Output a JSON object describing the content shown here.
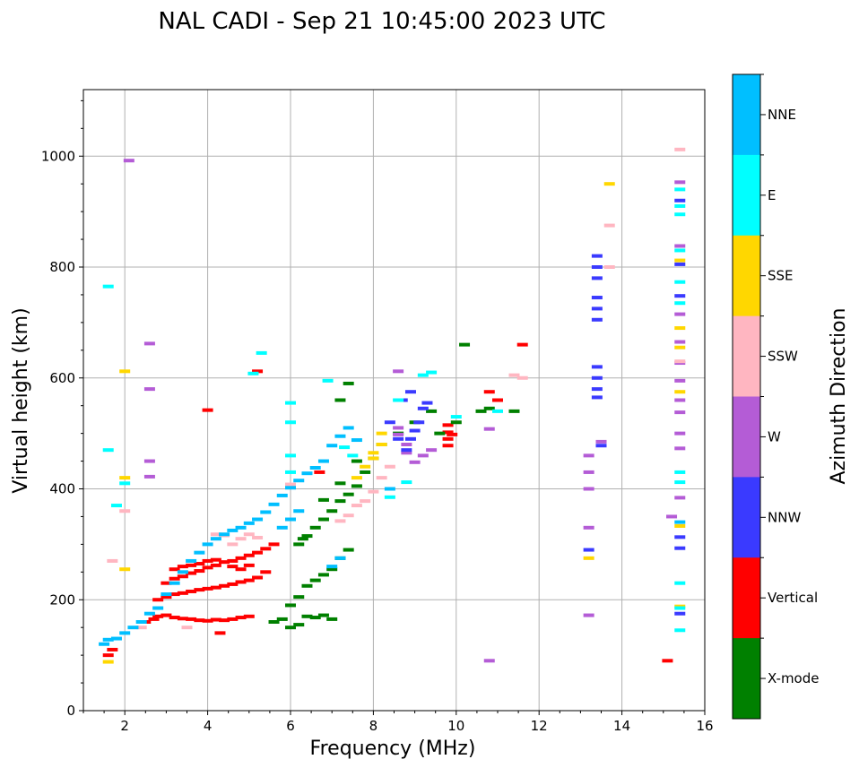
{
  "chart_data": {
    "type": "scatter",
    "title": "NAL CADI - Sep 21 10:45:00 2023 UTC",
    "xlabel": "Frequency (MHz)",
    "ylabel": "Virtual height (km)",
    "xlim": [
      1,
      16
    ],
    "ylim": [
      0,
      1120
    ],
    "xticks": [
      2,
      4,
      6,
      8,
      10,
      12,
      14,
      16
    ],
    "yticks": [
      0,
      200,
      400,
      600,
      800,
      1000
    ],
    "grid": true,
    "colorbar": {
      "title": "Azimuth Direction",
      "categories": [
        {
          "label": "NNE",
          "color": "#00bfff"
        },
        {
          "label": "E",
          "color": "#00ffff"
        },
        {
          "label": "SSE",
          "color": "#ffd700"
        },
        {
          "label": "SSW",
          "color": "#ffb6c1"
        },
        {
          "label": "W",
          "color": "#b45cd6"
        },
        {
          "label": "NNW",
          "color": "#3a3aff"
        },
        {
          "label": "Vertical",
          "color": "#ff0000"
        },
        {
          "label": "X-mode",
          "color": "#008000"
        }
      ]
    },
    "series": [
      {
        "name": "Vertical",
        "points": [
          [
            1.6,
            100
          ],
          [
            1.7,
            110
          ],
          [
            2.5,
            160
          ],
          [
            2.7,
            165
          ],
          [
            2.8,
            170
          ],
          [
            3.0,
            172
          ],
          [
            3.2,
            168
          ],
          [
            3.4,
            166
          ],
          [
            3.6,
            165
          ],
          [
            3.8,
            163
          ],
          [
            4.0,
            162
          ],
          [
            4.2,
            164
          ],
          [
            4.4,
            163
          ],
          [
            4.6,
            165
          ],
          [
            4.8,
            168
          ],
          [
            5.0,
            170
          ],
          [
            2.8,
            200
          ],
          [
            3.0,
            205
          ],
          [
            3.2,
            210
          ],
          [
            3.4,
            212
          ],
          [
            3.6,
            215
          ],
          [
            3.8,
            218
          ],
          [
            4.0,
            220
          ],
          [
            4.2,
            222
          ],
          [
            4.4,
            225
          ],
          [
            4.6,
            228
          ],
          [
            4.8,
            232
          ],
          [
            5.0,
            235
          ],
          [
            5.2,
            240
          ],
          [
            5.4,
            250
          ],
          [
            3.0,
            230
          ],
          [
            3.2,
            238
          ],
          [
            3.4,
            242
          ],
          [
            3.6,
            248
          ],
          [
            3.8,
            252
          ],
          [
            4.0,
            258
          ],
          [
            4.2,
            262
          ],
          [
            4.4,
            268
          ],
          [
            4.6,
            270
          ],
          [
            4.8,
            275
          ],
          [
            5.0,
            280
          ],
          [
            5.2,
            285
          ],
          [
            5.4,
            292
          ],
          [
            5.6,
            300
          ],
          [
            3.2,
            255
          ],
          [
            3.4,
            260
          ],
          [
            3.6,
            262
          ],
          [
            3.8,
            265
          ],
          [
            4.0,
            270
          ],
          [
            4.2,
            272
          ],
          [
            4.6,
            260
          ],
          [
            4.8,
            255
          ],
          [
            5.0,
            262
          ],
          [
            4.3,
            140
          ],
          [
            4.0,
            542
          ],
          [
            5.2,
            612
          ],
          [
            6.7,
            430
          ],
          [
            9.8,
            478
          ],
          [
            9.8,
            490
          ],
          [
            9.8,
            502
          ],
          [
            9.8,
            515
          ],
          [
            9.9,
            498
          ],
          [
            10.8,
            575
          ],
          [
            11.0,
            560
          ],
          [
            11.6,
            660
          ],
          [
            15.1,
            90
          ]
        ]
      },
      {
        "name": "X-mode",
        "points": [
          [
            5.6,
            160
          ],
          [
            5.8,
            165
          ],
          [
            6.0,
            150
          ],
          [
            6.2,
            155
          ],
          [
            6.4,
            170
          ],
          [
            6.6,
            168
          ],
          [
            6.8,
            172
          ],
          [
            7.0,
            165
          ],
          [
            6.0,
            190
          ],
          [
            6.2,
            205
          ],
          [
            6.4,
            225
          ],
          [
            6.6,
            235
          ],
          [
            6.8,
            245
          ],
          [
            7.0,
            255
          ],
          [
            7.2,
            275
          ],
          [
            7.4,
            290
          ],
          [
            6.2,
            300
          ],
          [
            6.3,
            310
          ],
          [
            6.4,
            315
          ],
          [
            6.6,
            330
          ],
          [
            6.8,
            345
          ],
          [
            7.0,
            360
          ],
          [
            7.2,
            378
          ],
          [
            7.4,
            390
          ],
          [
            7.6,
            405
          ],
          [
            7.8,
            430
          ],
          [
            8.0,
            455
          ],
          [
            6.8,
            380
          ],
          [
            7.2,
            410
          ],
          [
            7.6,
            450
          ],
          [
            8.2,
            480
          ],
          [
            8.6,
            500
          ],
          [
            9.0,
            520
          ],
          [
            9.4,
            540
          ],
          [
            9.6,
            500
          ],
          [
            10.0,
            520
          ],
          [
            10.2,
            660
          ],
          [
            10.6,
            540
          ],
          [
            10.8,
            545
          ],
          [
            11.4,
            540
          ],
          [
            7.2,
            560
          ],
          [
            7.4,
            590
          ]
        ]
      },
      {
        "name": "W",
        "points": [
          [
            2.6,
            662
          ],
          [
            2.6,
            580
          ],
          [
            2.6,
            450
          ],
          [
            2.6,
            422
          ],
          [
            8.6,
            612
          ],
          [
            8.6,
            510
          ],
          [
            8.6,
            498
          ],
          [
            8.8,
            480
          ],
          [
            8.8,
            465
          ],
          [
            9.0,
            448
          ],
          [
            9.2,
            460
          ],
          [
            9.4,
            470
          ],
          [
            13.2,
            460
          ],
          [
            13.2,
            430
          ],
          [
            13.2,
            400
          ],
          [
            13.2,
            330
          ],
          [
            13.2,
            172
          ],
          [
            13.5,
            485
          ],
          [
            10.8,
            90
          ],
          [
            10.8,
            508
          ],
          [
            15.2,
            350
          ],
          [
            15.4,
            384
          ],
          [
            15.4,
            473
          ],
          [
            15.4,
            500
          ],
          [
            15.4,
            538
          ],
          [
            15.4,
            560
          ],
          [
            15.4,
            595
          ],
          [
            15.4,
            627
          ],
          [
            15.4,
            665
          ],
          [
            15.4,
            715
          ],
          [
            15.4,
            838
          ],
          [
            15.4,
            953
          ],
          [
            2.1,
            992
          ]
        ]
      },
      {
        "name": "NNW",
        "points": [
          [
            8.8,
            470
          ],
          [
            8.9,
            490
          ],
          [
            9.0,
            505
          ],
          [
            9.1,
            520
          ],
          [
            9.2,
            545
          ],
          [
            9.3,
            555
          ],
          [
            8.4,
            520
          ],
          [
            8.6,
            490
          ],
          [
            8.7,
            560
          ],
          [
            8.9,
            575
          ],
          [
            13.4,
            820
          ],
          [
            13.4,
            800
          ],
          [
            13.4,
            780
          ],
          [
            13.4,
            745
          ],
          [
            13.4,
            725
          ],
          [
            13.4,
            705
          ],
          [
            13.4,
            620
          ],
          [
            13.4,
            600
          ],
          [
            13.4,
            580
          ],
          [
            13.4,
            565
          ],
          [
            13.2,
            290
          ],
          [
            13.5,
            478
          ],
          [
            15.4,
            175
          ],
          [
            15.4,
            293
          ],
          [
            15.4,
            313
          ],
          [
            15.4,
            748
          ],
          [
            15.4,
            805
          ],
          [
            15.4,
            920
          ]
        ]
      },
      {
        "name": "SSW",
        "points": [
          [
            1.7,
            270
          ],
          [
            2.0,
            360
          ],
          [
            2.4,
            150
          ],
          [
            3.5,
            150
          ],
          [
            4.2,
            318
          ],
          [
            4.4,
            316
          ],
          [
            4.6,
            300
          ],
          [
            4.8,
            310
          ],
          [
            5.0,
            318
          ],
          [
            5.2,
            312
          ],
          [
            6.0,
            408
          ],
          [
            7.2,
            342
          ],
          [
            7.4,
            352
          ],
          [
            7.6,
            370
          ],
          [
            7.8,
            378
          ],
          [
            8.0,
            395
          ],
          [
            8.2,
            420
          ],
          [
            8.4,
            440
          ],
          [
            13.7,
            800
          ],
          [
            13.7,
            875
          ],
          [
            11.4,
            605
          ],
          [
            11.6,
            600
          ],
          [
            15.4,
            630
          ],
          [
            15.4,
            1012
          ]
        ]
      },
      {
        "name": "SSE",
        "points": [
          [
            1.6,
            88
          ],
          [
            2.0,
            612
          ],
          [
            2.0,
            255
          ],
          [
            2.0,
            420
          ],
          [
            7.6,
            420
          ],
          [
            7.8,
            440
          ],
          [
            8.0,
            455
          ],
          [
            8.0,
            465
          ],
          [
            8.2,
            480
          ],
          [
            8.2,
            500
          ],
          [
            13.2,
            275
          ],
          [
            13.7,
            950
          ],
          [
            15.4,
            188
          ],
          [
            15.4,
            333
          ],
          [
            15.4,
            575
          ],
          [
            15.4,
            655
          ],
          [
            15.4,
            690
          ],
          [
            15.4,
            812
          ]
        ]
      },
      {
        "name": "E",
        "points": [
          [
            1.6,
            765
          ],
          [
            1.6,
            470
          ],
          [
            1.8,
            370
          ],
          [
            2.0,
            410
          ],
          [
            5.3,
            645
          ],
          [
            5.1,
            608
          ],
          [
            6.0,
            555
          ],
          [
            6.0,
            520
          ],
          [
            6.0,
            460
          ],
          [
            6.0,
            430
          ],
          [
            6.9,
            595
          ],
          [
            7.3,
            475
          ],
          [
            7.5,
            460
          ],
          [
            8.4,
            385
          ],
          [
            8.8,
            412
          ],
          [
            8.6,
            560
          ],
          [
            9.2,
            605
          ],
          [
            9.4,
            610
          ],
          [
            10.0,
            530
          ],
          [
            11.0,
            540
          ],
          [
            15.4,
            145
          ],
          [
            15.4,
            185
          ],
          [
            15.4,
            230
          ],
          [
            15.4,
            430
          ],
          [
            15.4,
            412
          ],
          [
            15.4,
            735
          ],
          [
            15.4,
            773
          ],
          [
            15.4,
            830
          ],
          [
            15.4,
            895
          ],
          [
            15.4,
            910
          ],
          [
            15.4,
            940
          ]
        ]
      },
      {
        "name": "NNE",
        "points": [
          [
            1.5,
            120
          ],
          [
            1.6,
            128
          ],
          [
            1.8,
            130
          ],
          [
            2.0,
            140
          ],
          [
            2.2,
            150
          ],
          [
            2.4,
            160
          ],
          [
            2.6,
            175
          ],
          [
            2.8,
            185
          ],
          [
            3.0,
            210
          ],
          [
            3.2,
            230
          ],
          [
            3.4,
            250
          ],
          [
            3.6,
            270
          ],
          [
            3.8,
            285
          ],
          [
            4.0,
            300
          ],
          [
            4.2,
            310
          ],
          [
            4.4,
            318
          ],
          [
            4.6,
            325
          ],
          [
            4.8,
            330
          ],
          [
            5.0,
            338
          ],
          [
            5.2,
            345
          ],
          [
            5.4,
            358
          ],
          [
            5.6,
            372
          ],
          [
            5.8,
            388
          ],
          [
            6.0,
            402
          ],
          [
            6.2,
            415
          ],
          [
            6.4,
            428
          ],
          [
            6.6,
            438
          ],
          [
            6.8,
            450
          ],
          [
            7.0,
            478
          ],
          [
            7.2,
            495
          ],
          [
            7.4,
            510
          ],
          [
            7.6,
            488
          ],
          [
            5.8,
            330
          ],
          [
            6.0,
            345
          ],
          [
            6.2,
            360
          ],
          [
            7.0,
            260
          ],
          [
            7.2,
            275
          ],
          [
            8.4,
            400
          ],
          [
            15.4,
            340
          ]
        ]
      }
    ]
  }
}
